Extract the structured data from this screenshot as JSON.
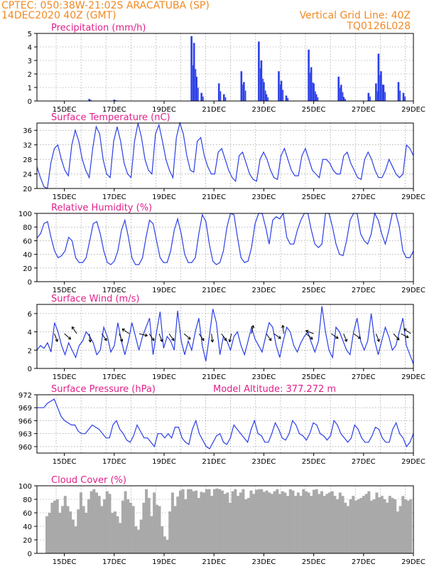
{
  "header": {
    "line1_left": "CPTEC:   050:38W-21:02S   ARACATUBA (SP)",
    "line2_left": "14DEC2020 40Z (GMT)",
    "line1_right": "Vertical Grid Line: 40Z",
    "line2_right": "TQ0126L028"
  },
  "colors": {
    "series": "#2b3fe6",
    "cloud": "#a9a9a9",
    "title": "#e0208a",
    "header": "#f08a24"
  },
  "x_axis": {
    "tick_labels": [
      "15DEC",
      "17DEC",
      "19DEC",
      "21DEC",
      "23DEC",
      "25DEC",
      "27DEC",
      "29DEC"
    ]
  },
  "chart_data": [
    {
      "type": "bar",
      "title": "Precipitation (mm/h)",
      "ylim": [
        0,
        5
      ],
      "yticks": [
        0,
        1,
        2,
        3,
        4,
        5
      ],
      "events": [
        [
          16.0,
          0.15
        ],
        [
          17.0,
          0.1
        ],
        [
          20.1,
          4.8
        ],
        [
          20.2,
          4.3
        ],
        [
          20.3,
          1.8
        ],
        [
          20.5,
          0.6
        ],
        [
          21.2,
          1.3
        ],
        [
          21.4,
          0.5
        ],
        [
          22.1,
          2.2
        ],
        [
          22.2,
          1.4
        ],
        [
          22.8,
          4.4
        ],
        [
          22.9,
          3.0
        ],
        [
          23.0,
          1.4
        ],
        [
          23.1,
          0.5
        ],
        [
          23.6,
          2.2
        ],
        [
          23.7,
          1.5
        ],
        [
          23.9,
          0.4
        ],
        [
          24.8,
          3.8
        ],
        [
          24.9,
          2.5
        ],
        [
          25.0,
          1.3
        ],
        [
          25.1,
          0.5
        ],
        [
          26.0,
          1.8
        ],
        [
          26.1,
          1.2
        ],
        [
          26.2,
          0.3
        ],
        [
          27.2,
          0.6
        ],
        [
          27.5,
          1.3
        ],
        [
          27.6,
          3.5
        ],
        [
          27.7,
          2.2
        ],
        [
          27.8,
          1.2
        ],
        [
          28.4,
          1.4
        ],
        [
          28.6,
          0.6
        ]
      ]
    },
    {
      "type": "line",
      "title": "Surface Temperature (nC)",
      "ylim": [
        20,
        38
      ],
      "yticks": [
        20,
        24,
        28,
        32,
        36
      ],
      "series": [
        {
          "values": [
            26,
            23,
            20.5,
            20,
            27,
            31,
            32,
            28,
            25,
            23.5,
            32,
            36,
            33,
            28,
            25,
            23,
            31,
            37,
            35,
            28,
            24,
            23,
            33,
            37,
            33,
            27,
            24,
            23,
            33,
            38,
            34,
            28,
            25,
            24,
            35,
            37.5,
            33,
            28,
            25,
            23,
            34,
            38,
            35,
            29,
            25,
            24.5,
            33,
            34,
            29,
            26,
            24,
            24,
            30,
            31,
            28,
            25,
            23,
            22,
            29,
            30,
            27,
            24,
            22.5,
            22,
            28,
            30,
            28,
            25,
            23,
            22.5,
            29,
            31,
            28,
            25,
            23.5,
            23.5,
            29,
            31,
            28,
            25,
            24,
            23,
            28,
            28,
            27,
            25,
            24,
            24,
            29,
            30,
            27,
            25,
            23,
            22.5,
            28,
            30,
            28,
            25,
            23,
            23,
            25,
            28,
            26,
            24,
            23,
            24,
            32,
            31,
            29
          ]
        }
      ]
    },
    {
      "type": "line",
      "title": "Relative Humidity (%)",
      "ylim": [
        0,
        100
      ],
      "yticks": [
        0,
        20,
        40,
        60,
        80,
        100
      ],
      "series": [
        {
          "values": [
            64,
            70,
            85,
            88,
            65,
            45,
            35,
            38,
            45,
            65,
            60,
            35,
            28,
            28,
            35,
            60,
            85,
            88,
            70,
            45,
            28,
            25,
            30,
            45,
            75,
            90,
            65,
            35,
            25,
            25,
            35,
            65,
            90,
            85,
            60,
            35,
            28,
            28,
            45,
            75,
            92,
            70,
            40,
            28,
            28,
            35,
            70,
            98,
            88,
            55,
            30,
            25,
            28,
            45,
            80,
            100,
            98,
            65,
            35,
            28,
            30,
            50,
            85,
            100,
            100,
            80,
            55,
            90,
            95,
            92,
            100,
            65,
            55,
            55,
            75,
            90,
            100,
            100,
            75,
            55,
            50,
            55,
            100,
            100,
            80,
            55,
            40,
            38,
            60,
            90,
            100,
            100,
            70,
            60,
            55,
            70,
            100,
            90,
            70,
            55,
            75,
            100,
            100,
            80,
            45,
            35,
            35,
            45
          ]
        }
      ]
    },
    {
      "type": "line",
      "title": "Surface Wind (m/s)",
      "ylim": [
        0,
        7
      ],
      "yticks": [
        0,
        2,
        4,
        6
      ],
      "series": [
        {
          "values": [
            2,
            2.5,
            2.2,
            2.8,
            1.8,
            5,
            4,
            2.5,
            1.5,
            2.8,
            2,
            1.2,
            2.5,
            3,
            4,
            3.5,
            2.8,
            1.5,
            2,
            4.5,
            3.5,
            1.8,
            2.5,
            5,
            3,
            1.5,
            3,
            5,
            3.5,
            2,
            3.5,
            4.5,
            5.5,
            1.5,
            4,
            6.2,
            2.2,
            3.5,
            3,
            2,
            6.3,
            3,
            1.5,
            3,
            2,
            4,
            5.5,
            2.5,
            0.8,
            3.5,
            6.5,
            5,
            1.5,
            3.5,
            3,
            2,
            3.5,
            4,
            2.5,
            1.5,
            3,
            4.5,
            3.2,
            2.5,
            1.8,
            3.5,
            5,
            4.5,
            2.5,
            1.2,
            3,
            4.5,
            4,
            2.5,
            1.8,
            2.8,
            3.5,
            4,
            2.8,
            1.8,
            3,
            6.8,
            4,
            2,
            1.2,
            4.5,
            4,
            3,
            2,
            1.5,
            4,
            5.5,
            3,
            2,
            3,
            6,
            3,
            1.5,
            3,
            4.5,
            3.5,
            2,
            2.5,
            4,
            5.5,
            2.5,
            1.5,
            0.5
          ]
        }
      ],
      "arrows": [
        [
          14.6,
          1
        ],
        [
          15.0,
          0.6
        ],
        [
          15.5,
          -0.8
        ],
        [
          16.0,
          1.2
        ],
        [
          16.5,
          0.8
        ],
        [
          17.2,
          1
        ],
        [
          17.6,
          -0.5
        ],
        [
          18.0,
          0.2
        ],
        [
          18.4,
          0.8
        ],
        [
          18.8,
          1
        ],
        [
          19.2,
          0.8
        ],
        [
          19.8,
          0.6
        ],
        [
          20.4,
          0.8
        ],
        [
          20.9,
          1.2
        ],
        [
          21.3,
          0.8
        ],
        [
          21.7,
          1.5
        ],
        [
          22.5,
          -1.5
        ],
        [
          23.1,
          0.8
        ],
        [
          23.4,
          0.5
        ],
        [
          23.8,
          -1.2
        ],
        [
          24.7,
          0.6
        ],
        [
          25.0,
          -0.3
        ],
        [
          25.7,
          0.5
        ],
        [
          26.2,
          1
        ],
        [
          26.6,
          0.5
        ],
        [
          27.5,
          1
        ],
        [
          28.2,
          0.7
        ],
        [
          28.5,
          0.4
        ],
        [
          28.9,
          -0.5
        ]
      ]
    },
    {
      "type": "line",
      "title": "Surface Pressure (hPa)",
      "ylim": [
        958.5,
        972
      ],
      "yticks": [
        960,
        963,
        966,
        969,
        972
      ],
      "series": [
        {
          "values": [
            969,
            969,
            969,
            970,
            970.5,
            971,
            969,
            967,
            966,
            965.5,
            965,
            965,
            963.5,
            963,
            963,
            964,
            965,
            964.5,
            964,
            963,
            962,
            962,
            965,
            966,
            964,
            963,
            961.5,
            961,
            962.5,
            965,
            963.5,
            962,
            962,
            961,
            960,
            963,
            963,
            962,
            963,
            962,
            964.5,
            964.5,
            962,
            961,
            960.5,
            964,
            966,
            963,
            961.5,
            960,
            959.5,
            961,
            962.5,
            963,
            961,
            960.5,
            962,
            965,
            964,
            963,
            962,
            961,
            964,
            966,
            963,
            962.5,
            961,
            961,
            963,
            965.5,
            964,
            962,
            961.5,
            963,
            966,
            965,
            963,
            962.5,
            961.5,
            963,
            965.5,
            965,
            963,
            962.5,
            961.5,
            962.5,
            966,
            965,
            963,
            962,
            961,
            962,
            965,
            964,
            962,
            961,
            961,
            962.5,
            964.5,
            964,
            962,
            961,
            961,
            964,
            965.5,
            963,
            962,
            960,
            961,
            963
          ]
        }
      ],
      "annotation": "Model Altitude: 377.272 m"
    },
    {
      "type": "bar",
      "title": "Cloud Cover (%)",
      "ylim": [
        0,
        100
      ],
      "yticks": [
        0,
        20,
        40,
        60,
        80,
        100
      ],
      "values": [
        55,
        60,
        75,
        78,
        80,
        60,
        70,
        85,
        70,
        62,
        50,
        40,
        65,
        90,
        70,
        60,
        80,
        92,
        95,
        90,
        85,
        70,
        80,
        92,
        88,
        60,
        62,
        55,
        45,
        78,
        92,
        80,
        75,
        70,
        40,
        35,
        50,
        75,
        95,
        82,
        55,
        90,
        72,
        70,
        40,
        25,
        20,
        62,
        90,
        70,
        84,
        93,
        95,
        80,
        95,
        95,
        92,
        93,
        82,
        91,
        90,
        95,
        95,
        85,
        95,
        96,
        95,
        93,
        88,
        90,
        75,
        92,
        95,
        85,
        90,
        95,
        80,
        82,
        93,
        88,
        94,
        95,
        95,
        91,
        93,
        90,
        88,
        92,
        95,
        88,
        92,
        90,
        85,
        95,
        93,
        85,
        90,
        85,
        95,
        92,
        90,
        85,
        94,
        95,
        88,
        92,
        85,
        88,
        90,
        92,
        85,
        80,
        90,
        85,
        75,
        70,
        80,
        85,
        78,
        80,
        82,
        85,
        88,
        92,
        78,
        80,
        90,
        83,
        85,
        80,
        75,
        85,
        82,
        80,
        62,
        70,
        85,
        80,
        78,
        80
      ]
    }
  ],
  "panels": [
    {
      "title": "Precipitation (mm/h)",
      "extra": ""
    },
    {
      "title": "Surface Temperature (nC)",
      "extra": ""
    },
    {
      "title": "Relative Humidity (%)",
      "extra": ""
    },
    {
      "title": "Surface Wind (m/s)",
      "extra": ""
    },
    {
      "title": "Surface Pressure (hPa)",
      "extra": "Model Altitude: 377.272 m"
    },
    {
      "title": "Cloud Cover (%)",
      "extra": ""
    }
  ]
}
